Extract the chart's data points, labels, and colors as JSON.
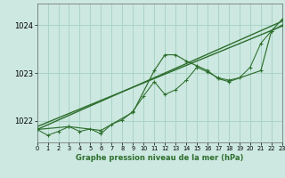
{
  "title": "Graphe pression niveau de la mer (hPa)",
  "background_color": "#cce8e0",
  "grid_color": "#aad4c8",
  "line_color": "#2d6e2d",
  "xlim": [
    0,
    23
  ],
  "ylim": [
    1021.55,
    1024.45
  ],
  "yticks": [
    1022,
    1023,
    1024
  ],
  "xticks": [
    0,
    1,
    2,
    3,
    4,
    5,
    6,
    7,
    8,
    9,
    10,
    11,
    12,
    13,
    14,
    15,
    16,
    17,
    18,
    19,
    20,
    21,
    22,
    23
  ],
  "series_hourly": {
    "x": [
      0,
      1,
      2,
      3,
      4,
      5,
      6,
      7,
      8,
      9,
      10,
      11,
      12,
      13,
      14,
      15,
      16,
      17,
      18,
      19,
      20,
      21,
      22,
      23
    ],
    "y": [
      1021.82,
      1021.7,
      1021.78,
      1021.88,
      1021.78,
      1021.83,
      1021.73,
      1021.93,
      1022.02,
      1022.2,
      1022.52,
      1022.82,
      1022.55,
      1022.65,
      1022.85,
      1023.12,
      1023.02,
      1022.9,
      1022.85,
      1022.9,
      1023.12,
      1023.62,
      1023.88,
      1024.0
    ]
  },
  "series_3hourly": {
    "x": [
      0,
      3,
      6,
      9,
      11,
      12,
      13,
      14,
      15,
      16,
      17,
      18,
      21,
      22,
      23
    ],
    "y": [
      1021.82,
      1021.88,
      1021.8,
      1022.18,
      1023.05,
      1023.38,
      1023.38,
      1023.25,
      1023.15,
      1023.05,
      1022.88,
      1022.82,
      1023.05,
      1023.88,
      1024.12
    ]
  },
  "trend1": {
    "x": [
      0,
      23
    ],
    "y": [
      1021.88,
      1023.98
    ]
  },
  "trend2": {
    "x": [
      0,
      23
    ],
    "y": [
      1021.82,
      1024.08
    ]
  }
}
